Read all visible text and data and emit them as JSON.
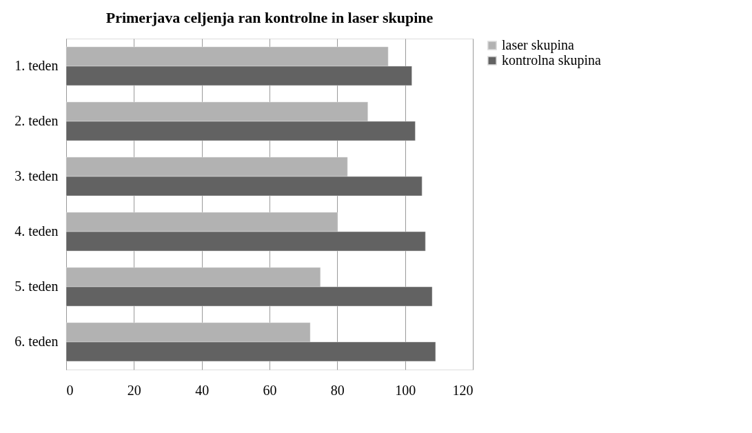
{
  "chart_data": {
    "type": "bar",
    "orientation": "horizontal",
    "title": "Primerjava celjenja ran kontrolne in laser skupine",
    "categories": [
      "1. teden",
      "2. teden",
      "3. teden",
      "4. teden",
      "5. teden",
      "6. teden"
    ],
    "series": [
      {
        "name": "laser skupina",
        "color": "#b2b2b2",
        "values": [
          95,
          89,
          83,
          80,
          75,
          72
        ]
      },
      {
        "name": "kontrolna skupina",
        "color": "#626262",
        "values": [
          102,
          103,
          105,
          106,
          108,
          109
        ]
      }
    ],
    "xlim": [
      0,
      120
    ],
    "xticks": [
      0,
      20,
      40,
      60,
      80,
      100,
      120
    ],
    "grid": "x",
    "legend": "right"
  }
}
